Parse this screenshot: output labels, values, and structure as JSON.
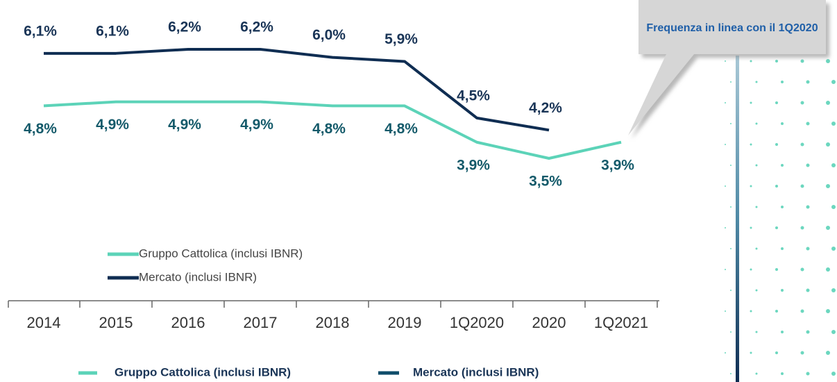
{
  "chart_data": {
    "type": "line",
    "categories": [
      "2014",
      "2015",
      "2016",
      "2017",
      "2018",
      "2019",
      "1Q2020",
      "2020",
      "1Q2021"
    ],
    "series": [
      {
        "name": "Gruppo Cattolica (inclusi IBNR)",
        "color": "#5cd3b8",
        "values": [
          4.8,
          4.9,
          4.9,
          4.9,
          4.8,
          4.8,
          3.9,
          3.5,
          3.9
        ],
        "value_labels": [
          "4,8%",
          "4,9%",
          "4,9%",
          "4,9%",
          "4,8%",
          "4,8%",
          "3,9%",
          "3,5%",
          "3,9%"
        ]
      },
      {
        "name": "Mercato (inclusi IBNR)",
        "color": "#0f2d52",
        "values": [
          6.1,
          6.1,
          6.2,
          6.2,
          6.0,
          5.9,
          4.5,
          4.2,
          null
        ],
        "value_labels": [
          "6,1%",
          "6,1%",
          "6,2%",
          "6,2%",
          "6,0%",
          "5,9%",
          "4,5%",
          "4,2%",
          null
        ]
      }
    ],
    "annotation": "Frequenza in linea con il 1Q2020"
  }
}
